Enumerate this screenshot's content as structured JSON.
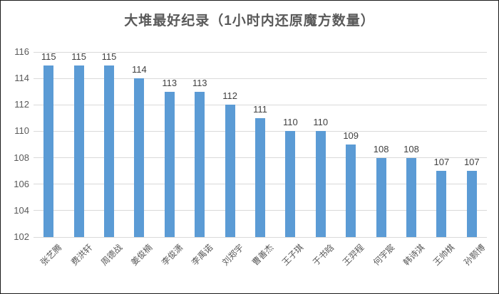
{
  "chart_data": {
    "type": "bar",
    "title": "大堆最好纪录（1小时内还原魔方数量）",
    "categories": [
      "张艺腾",
      "费洪轩",
      "周德战",
      "姜俊楠",
      "李俊潇",
      "李禹诺",
      "刘郑宇",
      "曹善杰",
      "王子琪",
      "于书晗",
      "王羿程",
      "何宇宸",
      "韩诗淇",
      "王帅棋",
      "孙颢博"
    ],
    "values": [
      115,
      115,
      115,
      114,
      113,
      113,
      112,
      111,
      110,
      110,
      109,
      108,
      108,
      107,
      107
    ],
    "xlabel": "",
    "ylabel": "",
    "ylim": [
      102,
      116
    ],
    "yticks": [
      102,
      104,
      106,
      108,
      110,
      112,
      114,
      116
    ],
    "grid": true,
    "legend_position": "none",
    "data_labels_shown": true,
    "x_label_rotation_deg": -45,
    "colors": {
      "bar": "#5b9bd5",
      "gridline": "#d9d9d9",
      "title_text": "#595959",
      "axis_tick_text": "#595959",
      "data_label_text": "#404040",
      "background": "#ffffff"
    }
  }
}
